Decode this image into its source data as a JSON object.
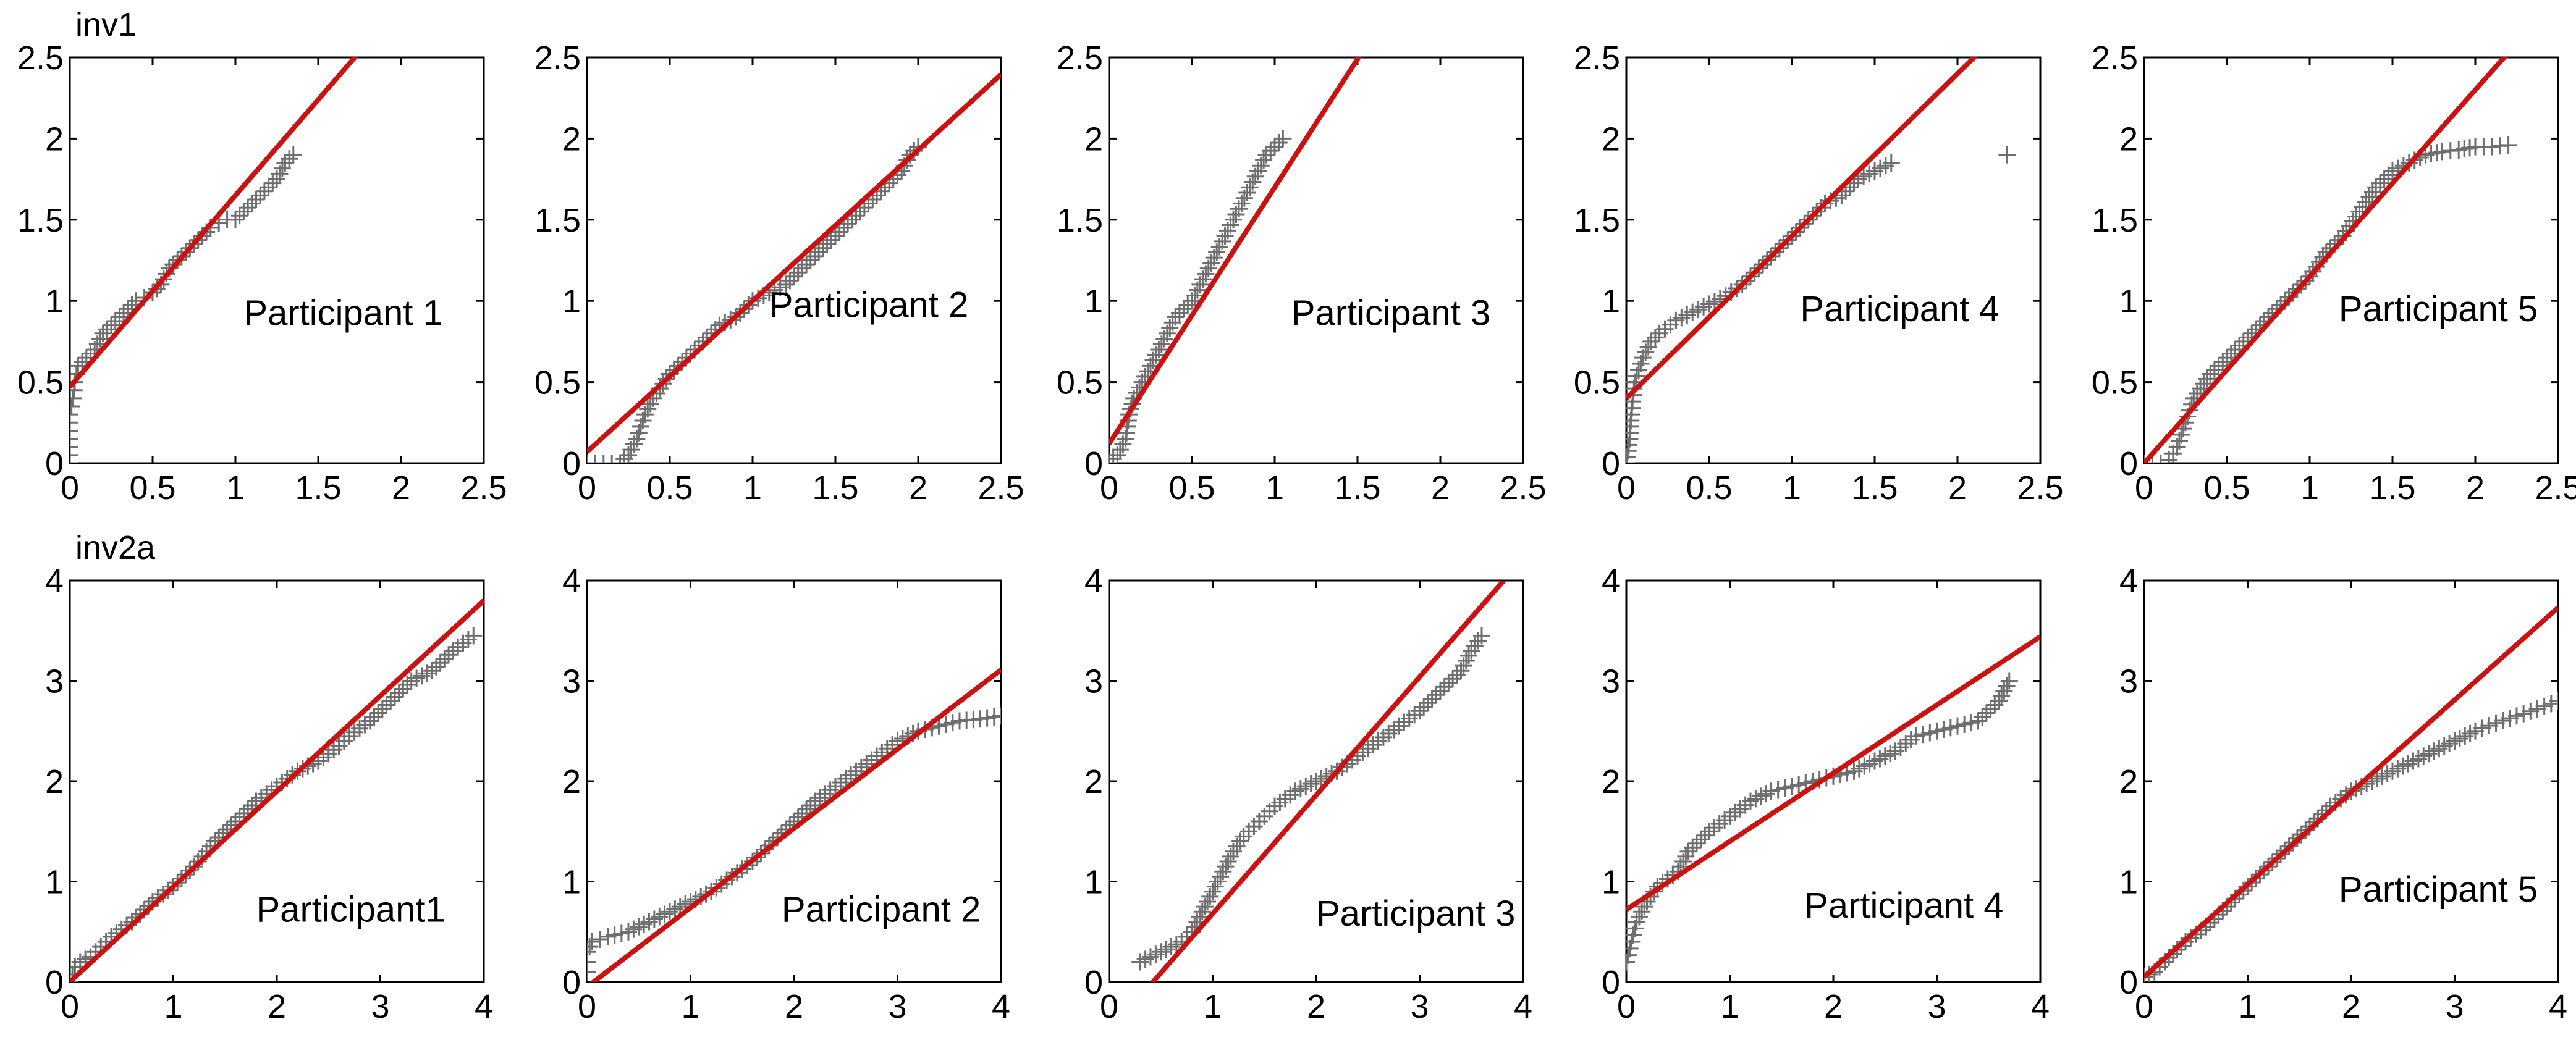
{
  "rows": [
    {
      "label": "inv1"
    },
    {
      "label": "inv2a"
    }
  ],
  "chart_data": [
    {
      "type": "scatter",
      "row": 0,
      "participant": "Participant 1",
      "xlim": [
        0,
        2.5
      ],
      "ylim": [
        0,
        2.5
      ],
      "xticks": [
        "0",
        "0.5",
        "1",
        "1.5",
        "2",
        "2.5"
      ],
      "yticks": [
        "0",
        "0.5",
        "1",
        "1.5",
        "2",
        "2.5"
      ],
      "fit_line": {
        "intercept": 0.47,
        "slope": 1.18
      },
      "points": [
        [
          0,
          0.0
        ],
        [
          0,
          0.1
        ],
        [
          0,
          0.2
        ],
        [
          0,
          0.3
        ],
        [
          0.02,
          0.4
        ],
        [
          0.03,
          0.5
        ],
        [
          0.05,
          0.6
        ],
        [
          0.1,
          0.65
        ],
        [
          0.15,
          0.7
        ],
        [
          0.2,
          0.8
        ],
        [
          0.25,
          0.85
        ],
        [
          0.3,
          0.9
        ],
        [
          0.35,
          0.95
        ],
        [
          0.4,
          1.0
        ],
        [
          0.45,
          1.02
        ],
        [
          0.5,
          1.05
        ],
        [
          0.55,
          1.1
        ],
        [
          0.6,
          1.2
        ],
        [
          0.65,
          1.25
        ],
        [
          0.7,
          1.3
        ],
        [
          0.75,
          1.35
        ],
        [
          0.8,
          1.4
        ],
        [
          0.85,
          1.45
        ],
        [
          0.9,
          1.48
        ],
        [
          0.95,
          1.5
        ],
        [
          1.0,
          1.5
        ],
        [
          1.05,
          1.55
        ],
        [
          1.1,
          1.6
        ],
        [
          1.15,
          1.65
        ],
        [
          1.2,
          1.7
        ],
        [
          1.25,
          1.75
        ],
        [
          1.3,
          1.85
        ],
        [
          1.35,
          1.9
        ]
      ]
    },
    {
      "type": "scatter",
      "row": 0,
      "participant": "Participant 2",
      "xlim": [
        0,
        2.5
      ],
      "ylim": [
        0,
        2.5
      ],
      "xticks": [
        "0",
        "0.5",
        "1",
        "1.5",
        "2",
        "2.5"
      ],
      "yticks": [
        "0",
        "0.5",
        "1",
        "1.5",
        "2",
        "2.5"
      ],
      "fit_line": {
        "intercept": 0.07,
        "slope": 0.93
      },
      "points": [
        [
          0.0,
          0.0
        ],
        [
          0.1,
          0.0
        ],
        [
          0.2,
          0.0
        ],
        [
          0.25,
          0.05
        ],
        [
          0.3,
          0.15
        ],
        [
          0.35,
          0.3
        ],
        [
          0.4,
          0.4
        ],
        [
          0.5,
          0.55
        ],
        [
          0.6,
          0.65
        ],
        [
          0.7,
          0.75
        ],
        [
          0.8,
          0.85
        ],
        [
          0.9,
          0.9
        ],
        [
          1.0,
          1.0
        ],
        [
          1.1,
          1.05
        ],
        [
          1.2,
          1.1
        ],
        [
          1.3,
          1.2
        ],
        [
          1.4,
          1.3
        ],
        [
          1.5,
          1.4
        ],
        [
          1.6,
          1.5
        ],
        [
          1.7,
          1.6
        ],
        [
          1.8,
          1.7
        ],
        [
          1.9,
          1.8
        ],
        [
          1.95,
          1.9
        ],
        [
          2.0,
          1.95
        ]
      ]
    },
    {
      "type": "scatter",
      "row": 0,
      "participant": "Participant 3",
      "xlim": [
        0,
        2.5
      ],
      "ylim": [
        0,
        2.5
      ],
      "xticks": [
        "0",
        "0.5",
        "1",
        "1.5",
        "2",
        "2.5"
      ],
      "yticks": [
        "0",
        "0.5",
        "1",
        "1.5",
        "2",
        "2.5"
      ],
      "fit_line": {
        "intercept": 0.12,
        "slope": 1.58
      },
      "points": [
        [
          0.0,
          0.0
        ],
        [
          0.05,
          0.05
        ],
        [
          0.1,
          0.15
        ],
        [
          0.12,
          0.3
        ],
        [
          0.15,
          0.4
        ],
        [
          0.2,
          0.5
        ],
        [
          0.25,
          0.6
        ],
        [
          0.3,
          0.7
        ],
        [
          0.35,
          0.8
        ],
        [
          0.4,
          0.9
        ],
        [
          0.5,
          1.0
        ],
        [
          0.55,
          1.1
        ],
        [
          0.6,
          1.2
        ],
        [
          0.65,
          1.3
        ],
        [
          0.7,
          1.4
        ],
        [
          0.75,
          1.5
        ],
        [
          0.8,
          1.6
        ],
        [
          0.85,
          1.7
        ],
        [
          0.9,
          1.8
        ],
        [
          0.95,
          1.9
        ],
        [
          1.0,
          1.95
        ],
        [
          1.05,
          2.0
        ]
      ]
    },
    {
      "type": "scatter",
      "row": 0,
      "participant": "Participant 4",
      "xlim": [
        0,
        2.5
      ],
      "ylim": [
        0,
        2.5
      ],
      "xticks": [
        "0",
        "0.5",
        "1",
        "1.5",
        "2",
        "2.5"
      ],
      "yticks": [
        "0",
        "0.5",
        "1",
        "1.5",
        "2",
        "2.5"
      ],
      "fit_line": {
        "intercept": 0.4,
        "slope": 1.0
      },
      "points": [
        [
          0.0,
          0.0
        ],
        [
          0.02,
          0.15
        ],
        [
          0.03,
          0.3
        ],
        [
          0.05,
          0.5
        ],
        [
          0.1,
          0.65
        ],
        [
          0.15,
          0.75
        ],
        [
          0.2,
          0.8
        ],
        [
          0.3,
          0.88
        ],
        [
          0.4,
          0.93
        ],
        [
          0.5,
          0.98
        ],
        [
          0.6,
          1.03
        ],
        [
          0.7,
          1.1
        ],
        [
          0.8,
          1.2
        ],
        [
          0.9,
          1.3
        ],
        [
          1.0,
          1.4
        ],
        [
          1.1,
          1.5
        ],
        [
          1.2,
          1.6
        ],
        [
          1.3,
          1.65
        ],
        [
          1.4,
          1.75
        ],
        [
          1.6,
          1.85
        ],
        [
          2.3,
          1.9
        ]
      ]
    },
    {
      "type": "scatter",
      "row": 0,
      "participant": "Participant 5",
      "xlim": [
        0,
        2.5
      ],
      "ylim": [
        0,
        2.5
      ],
      "xticks": [
        "0",
        "0.5",
        "1",
        "1.5",
        "2",
        "2.5"
      ],
      "yticks": [
        "0",
        "0.5",
        "1",
        "1.5",
        "2",
        "2.5"
      ],
      "fit_line": {
        "intercept": 0.0,
        "slope": 1.15
      },
      "points": [
        [
          0.0,
          0.0
        ],
        [
          0.1,
          0.0
        ],
        [
          0.15,
          0.02
        ],
        [
          0.2,
          0.1
        ],
        [
          0.25,
          0.25
        ],
        [
          0.3,
          0.4
        ],
        [
          0.4,
          0.55
        ],
        [
          0.5,
          0.65
        ],
        [
          0.6,
          0.75
        ],
        [
          0.7,
          0.85
        ],
        [
          0.8,
          0.95
        ],
        [
          0.9,
          1.05
        ],
        [
          1.0,
          1.15
        ],
        [
          1.1,
          1.3
        ],
        [
          1.2,
          1.4
        ],
        [
          1.3,
          1.55
        ],
        [
          1.4,
          1.7
        ],
        [
          1.5,
          1.8
        ],
        [
          1.6,
          1.85
        ],
        [
          1.7,
          1.9
        ],
        [
          1.8,
          1.92
        ],
        [
          1.9,
          1.93
        ],
        [
          2.0,
          1.95
        ],
        [
          2.1,
          1.95
        ],
        [
          2.2,
          1.96
        ]
      ]
    },
    {
      "type": "scatter",
      "row": 1,
      "participant": "Participant1",
      "xlim": [
        0,
        4
      ],
      "ylim": [
        0,
        4
      ],
      "xticks": [
        "0",
        "1",
        "2",
        "3",
        "4"
      ],
      "yticks": [
        "0",
        "1",
        "2",
        "3",
        "4"
      ],
      "fit_line": {
        "intercept": 0.0,
        "slope": 0.95
      },
      "points": [
        [
          0.0,
          0.0
        ],
        [
          0.05,
          0.15
        ],
        [
          0.1,
          0.2
        ],
        [
          0.2,
          0.25
        ],
        [
          0.3,
          0.35
        ],
        [
          0.4,
          0.45
        ],
        [
          0.6,
          0.6
        ],
        [
          0.8,
          0.8
        ],
        [
          1.0,
          0.95
        ],
        [
          1.2,
          1.15
        ],
        [
          1.4,
          1.4
        ],
        [
          1.6,
          1.6
        ],
        [
          1.8,
          1.8
        ],
        [
          2.0,
          1.95
        ],
        [
          2.2,
          2.1
        ],
        [
          2.4,
          2.2
        ],
        [
          2.6,
          2.35
        ],
        [
          2.7,
          2.45
        ],
        [
          2.9,
          2.6
        ],
        [
          3.1,
          2.8
        ],
        [
          3.3,
          3.0
        ],
        [
          3.5,
          3.1
        ],
        [
          3.7,
          3.3
        ],
        [
          3.9,
          3.45
        ]
      ]
    },
    {
      "type": "scatter",
      "row": 1,
      "participant": "Participant 2",
      "xlim": [
        0,
        4
      ],
      "ylim": [
        0,
        4
      ],
      "xticks": [
        "0",
        "1",
        "2",
        "3",
        "4"
      ],
      "yticks": [
        "0",
        "1",
        "2",
        "3",
        "4"
      ],
      "fit_line": {
        "intercept": -0.05,
        "slope": 0.79
      },
      "points": [
        [
          0.0,
          0.1
        ],
        [
          0.0,
          0.2
        ],
        [
          0.0,
          0.3
        ],
        [
          0.05,
          0.4
        ],
        [
          0.2,
          0.45
        ],
        [
          0.4,
          0.5
        ],
        [
          0.6,
          0.6
        ],
        [
          0.8,
          0.7
        ],
        [
          1.0,
          0.8
        ],
        [
          1.2,
          0.9
        ],
        [
          1.4,
          1.05
        ],
        [
          1.6,
          1.2
        ],
        [
          1.8,
          1.4
        ],
        [
          2.0,
          1.6
        ],
        [
          2.2,
          1.8
        ],
        [
          2.4,
          1.95
        ],
        [
          2.6,
          2.1
        ],
        [
          2.8,
          2.25
        ],
        [
          3.0,
          2.4
        ],
        [
          3.2,
          2.5
        ],
        [
          3.4,
          2.55
        ],
        [
          3.6,
          2.6
        ],
        [
          3.8,
          2.62
        ],
        [
          4.0,
          2.65
        ]
      ]
    },
    {
      "type": "scatter",
      "row": 1,
      "participant": "Participant 3",
      "xlim": [
        0,
        4
      ],
      "ylim": [
        0,
        4
      ],
      "xticks": [
        "0",
        "1",
        "2",
        "3",
        "4"
      ],
      "yticks": [
        "0",
        "1",
        "2",
        "3",
        "4"
      ],
      "fit_line": {
        "intercept": -0.5,
        "slope": 1.18
      },
      "points": [
        [
          0.3,
          0.2
        ],
        [
          0.4,
          0.25
        ],
        [
          0.5,
          0.3
        ],
        [
          0.6,
          0.35
        ],
        [
          0.7,
          0.4
        ],
        [
          0.8,
          0.5
        ],
        [
          0.9,
          0.7
        ],
        [
          1.0,
          0.9
        ],
        [
          1.1,
          1.1
        ],
        [
          1.2,
          1.3
        ],
        [
          1.3,
          1.45
        ],
        [
          1.4,
          1.55
        ],
        [
          1.5,
          1.65
        ],
        [
          1.6,
          1.75
        ],
        [
          1.8,
          1.9
        ],
        [
          2.0,
          2.0
        ],
        [
          2.2,
          2.1
        ],
        [
          2.4,
          2.25
        ],
        [
          2.6,
          2.4
        ],
        [
          2.8,
          2.55
        ],
        [
          3.0,
          2.7
        ],
        [
          3.2,
          2.9
        ],
        [
          3.4,
          3.1
        ],
        [
          3.5,
          3.3
        ],
        [
          3.6,
          3.45
        ]
      ]
    },
    {
      "type": "scatter",
      "row": 1,
      "participant": "Participant 4",
      "xlim": [
        0,
        4
      ],
      "ylim": [
        0,
        4
      ],
      "xticks": [
        "0",
        "1",
        "2",
        "3",
        "4"
      ],
      "yticks": [
        "0",
        "1",
        "2",
        "3",
        "4"
      ],
      "fit_line": {
        "intercept": 0.72,
        "slope": 0.68
      },
      "points": [
        [
          0.0,
          0.2
        ],
        [
          0.05,
          0.4
        ],
        [
          0.1,
          0.6
        ],
        [
          0.2,
          0.8
        ],
        [
          0.3,
          0.95
        ],
        [
          0.5,
          1.1
        ],
        [
          0.6,
          1.3
        ],
        [
          0.8,
          1.5
        ],
        [
          1.0,
          1.65
        ],
        [
          1.2,
          1.8
        ],
        [
          1.4,
          1.9
        ],
        [
          1.6,
          1.95
        ],
        [
          1.8,
          2.0
        ],
        [
          2.0,
          2.05
        ],
        [
          2.2,
          2.1
        ],
        [
          2.4,
          2.2
        ],
        [
          2.6,
          2.3
        ],
        [
          2.8,
          2.45
        ],
        [
          3.0,
          2.5
        ],
        [
          3.2,
          2.55
        ],
        [
          3.4,
          2.6
        ],
        [
          3.6,
          2.8
        ],
        [
          3.7,
          3.0
        ]
      ]
    },
    {
      "type": "scatter",
      "row": 1,
      "participant": "Participant 5",
      "xlim": [
        0,
        4
      ],
      "ylim": [
        0,
        4
      ],
      "xticks": [
        "0",
        "1",
        "2",
        "3",
        "4"
      ],
      "yticks": [
        "0",
        "1",
        "2",
        "3",
        "4"
      ],
      "fit_line": {
        "intercept": 0.05,
        "slope": 0.92
      },
      "points": [
        [
          0.0,
          0.05
        ],
        [
          0.1,
          0.1
        ],
        [
          0.2,
          0.2
        ],
        [
          0.4,
          0.4
        ],
        [
          0.6,
          0.55
        ],
        [
          0.8,
          0.75
        ],
        [
          1.0,
          0.95
        ],
        [
          1.2,
          1.15
        ],
        [
          1.4,
          1.35
        ],
        [
          1.6,
          1.55
        ],
        [
          1.8,
          1.75
        ],
        [
          2.0,
          1.9
        ],
        [
          2.2,
          2.0
        ],
        [
          2.4,
          2.1
        ],
        [
          2.6,
          2.2
        ],
        [
          2.8,
          2.3
        ],
        [
          3.0,
          2.4
        ],
        [
          3.2,
          2.5
        ],
        [
          3.4,
          2.58
        ],
        [
          3.6,
          2.65
        ],
        [
          3.8,
          2.72
        ],
        [
          4.0,
          2.8
        ]
      ]
    }
  ]
}
